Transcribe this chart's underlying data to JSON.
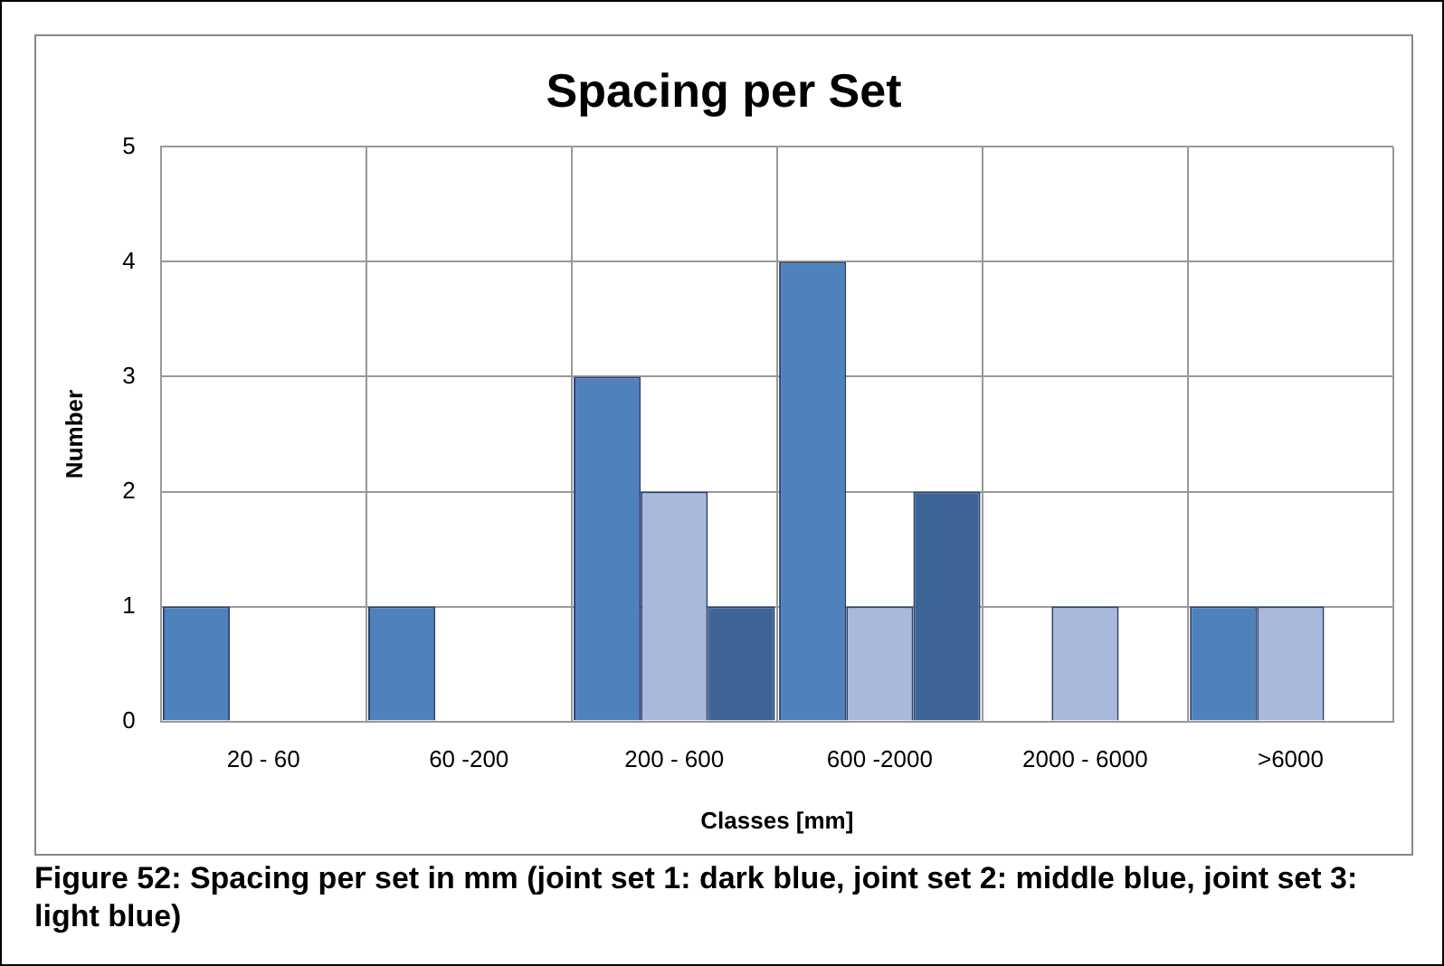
{
  "chart_data": {
    "type": "bar",
    "title": "Spacing per Set",
    "xlabel": "Classes [mm]",
    "ylabel": "Number",
    "categories": [
      "20 - 60",
      "60 -200",
      "200 - 600",
      "600 -2000",
      "2000 - 6000",
      ">6000"
    ],
    "series": [
      {
        "color": "#4f81bd",
        "values": [
          1,
          1,
          3,
          4,
          0,
          1
        ]
      },
      {
        "color": "#a9b9dc",
        "values": [
          0,
          0,
          2,
          1,
          1,
          1
        ]
      },
      {
        "color": "#3c6496",
        "values": [
          0,
          0,
          1,
          2,
          0,
          0
        ]
      }
    ],
    "ylim": [
      0,
      5
    ],
    "yticks": [
      0,
      1,
      2,
      3,
      4,
      5
    ],
    "grid": true,
    "annotations": [
      "Figure 52: Spacing per set in mm (joint set 1: dark blue, joint set 2: middle blue, joint set 3: light blue)"
    ]
  }
}
